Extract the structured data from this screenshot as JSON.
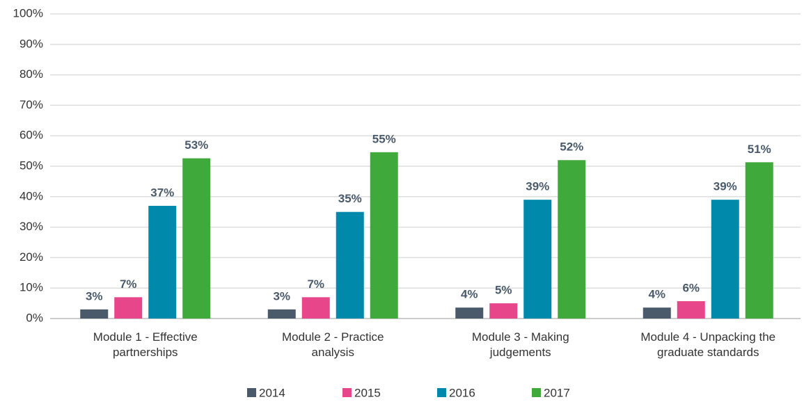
{
  "chart_data": {
    "type": "bar",
    "categories": [
      "Module 1 - Effective partnerships",
      "Module 2 - Practice analysis",
      "Module 3 - Making judgements",
      "Module 4 - Unpacking the graduate standards"
    ],
    "series": [
      {
        "name": "2014",
        "color": "#4a5a6b",
        "values": [
          3,
          3,
          3.6,
          3.6
        ],
        "value_labels": [
          "3%",
          "3%",
          "4%",
          "4%"
        ]
      },
      {
        "name": "2015",
        "color": "#e8468b",
        "values": [
          7,
          7,
          5,
          5.7
        ],
        "value_labels": [
          "7%",
          "7%",
          "5%",
          "6%"
        ]
      },
      {
        "name": "2016",
        "color": "#0089aa",
        "values": [
          37,
          35,
          39,
          39
        ],
        "value_labels": [
          "37%",
          "35%",
          "39%",
          "39%"
        ]
      },
      {
        "name": "2017",
        "color": "#40a93b",
        "values": [
          52.6,
          54.6,
          52,
          51.3
        ],
        "value_labels": [
          "53%",
          "55%",
          "52%",
          "51%"
        ]
      }
    ],
    "ylim": [
      0,
      100
    ],
    "yticks": [
      {
        "value": 0,
        "label": "0%"
      },
      {
        "value": 10,
        "label": "10%"
      },
      {
        "value": 20,
        "label": "20%"
      },
      {
        "value": 30,
        "label": "30%"
      },
      {
        "value": 40,
        "label": "40%"
      },
      {
        "value": 50,
        "label": "50%"
      },
      {
        "value": 60,
        "label": "60%"
      },
      {
        "value": 70,
        "label": "70%"
      },
      {
        "value": 80,
        "label": "80%"
      },
      {
        "value": 90,
        "label": "90%"
      },
      {
        "value": 100,
        "label": "100%"
      }
    ],
    "grid": true,
    "legend": "bottom"
  }
}
